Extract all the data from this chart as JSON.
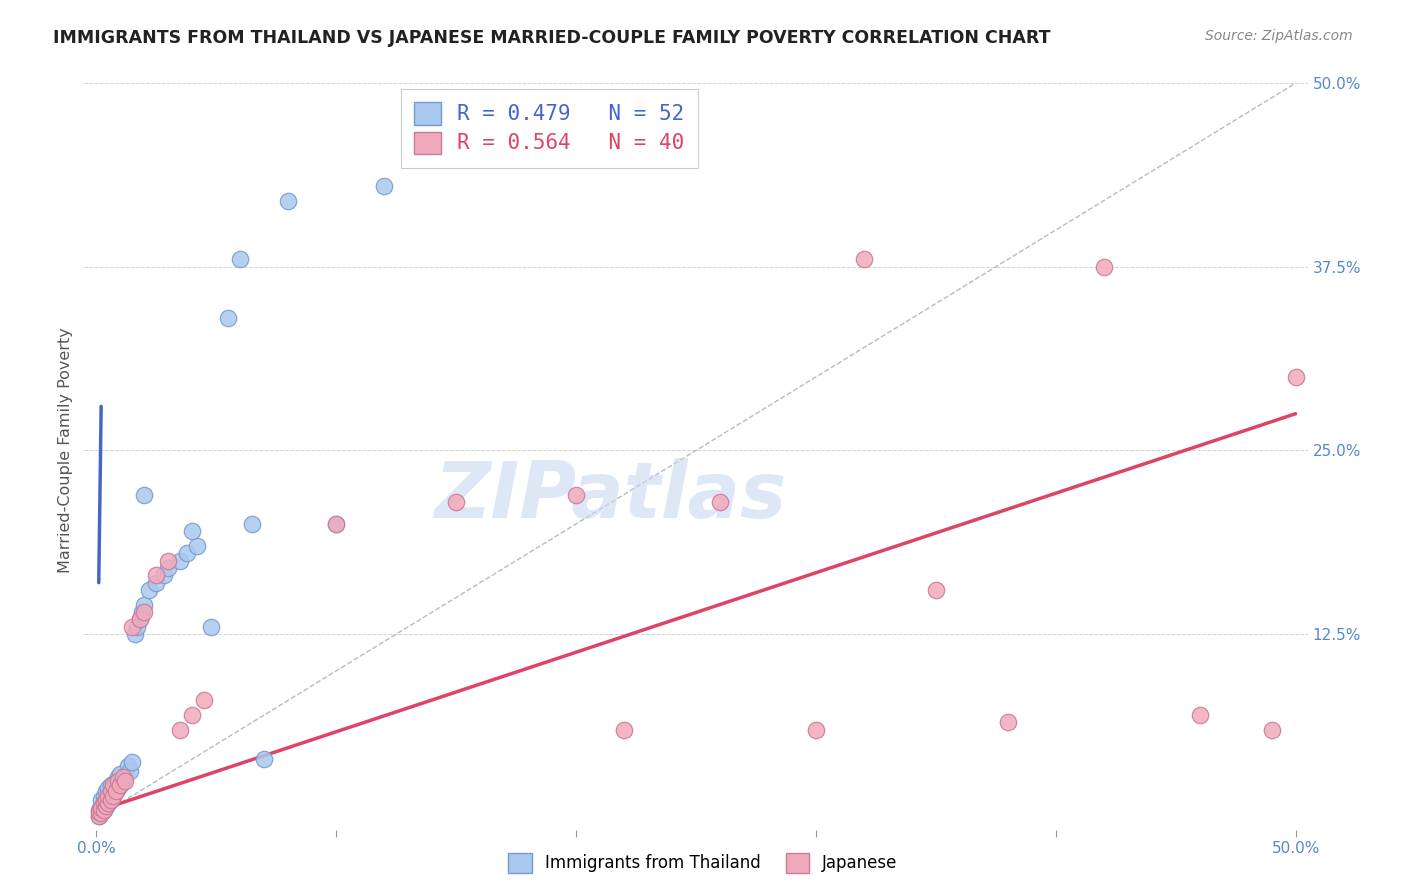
{
  "title": "IMMIGRANTS FROM THAILAND VS JAPANESE MARRIED-COUPLE FAMILY POVERTY CORRELATION CHART",
  "source": "Source: ZipAtlas.com",
  "ylabel": "Married-Couple Family Poverty",
  "xlim": [
    -0.005,
    0.505
  ],
  "ylim": [
    -0.008,
    0.508
  ],
  "xticks": [
    0.0,
    0.1,
    0.2,
    0.3,
    0.4,
    0.5
  ],
  "xticklabels_visible": [
    "0.0%",
    "",
    "",
    "",
    "",
    "50.0%"
  ],
  "yticks": [
    0.0,
    0.125,
    0.25,
    0.375,
    0.5
  ],
  "yticklabels_right": [
    "",
    "12.5%",
    "25.0%",
    "37.5%",
    "50.0%"
  ],
  "legend_line1": "R = 0.479   N = 52",
  "legend_line2": "R = 0.564   N = 40",
  "blue_fill": "#aac8f0",
  "blue_edge": "#7799cc",
  "pink_fill": "#f0aabb",
  "pink_edge": "#cc7799",
  "blue_line": "#4466cc",
  "pink_line": "#dd4466",
  "watermark_text": "ZIPatlas",
  "watermark_color": "#c8d8f0",
  "tick_color": "#5588cc",
  "grid_color": "#cccccc",
  "title_color": "#222222",
  "source_color": "#888888",
  "ylabel_color": "#555555",
  "blue_x": [
    0.001,
    0.001,
    0.002,
    0.002,
    0.002,
    0.003,
    0.003,
    0.003,
    0.004,
    0.004,
    0.004,
    0.005,
    0.005,
    0.005,
    0.006,
    0.006,
    0.006,
    0.007,
    0.007,
    0.008,
    0.008,
    0.009,
    0.009,
    0.01,
    0.01,
    0.011,
    0.012,
    0.013,
    0.014,
    0.015,
    0.016,
    0.017,
    0.018,
    0.019,
    0.02,
    0.022,
    0.025,
    0.028,
    0.03,
    0.035,
    0.038,
    0.042,
    0.048,
    0.055,
    0.06,
    0.065,
    0.07,
    0.08,
    0.02,
    0.04,
    0.1,
    0.12
  ],
  "blue_y": [
    0.001,
    0.005,
    0.003,
    0.008,
    0.012,
    0.005,
    0.01,
    0.015,
    0.008,
    0.012,
    0.018,
    0.01,
    0.015,
    0.02,
    0.012,
    0.018,
    0.022,
    0.015,
    0.02,
    0.018,
    0.025,
    0.02,
    0.028,
    0.022,
    0.03,
    0.025,
    0.028,
    0.035,
    0.032,
    0.038,
    0.125,
    0.13,
    0.135,
    0.14,
    0.145,
    0.155,
    0.16,
    0.165,
    0.17,
    0.175,
    0.18,
    0.185,
    0.13,
    0.34,
    0.38,
    0.2,
    0.04,
    0.42,
    0.22,
    0.195,
    0.2,
    0.43
  ],
  "pink_x": [
    0.001,
    0.001,
    0.002,
    0.002,
    0.003,
    0.003,
    0.004,
    0.004,
    0.005,
    0.005,
    0.006,
    0.006,
    0.007,
    0.007,
    0.008,
    0.009,
    0.01,
    0.011,
    0.012,
    0.015,
    0.018,
    0.02,
    0.025,
    0.03,
    0.035,
    0.04,
    0.045,
    0.1,
    0.15,
    0.2,
    0.22,
    0.26,
    0.3,
    0.32,
    0.35,
    0.38,
    0.42,
    0.46,
    0.49,
    0.5
  ],
  "pink_y": [
    0.001,
    0.004,
    0.003,
    0.007,
    0.005,
    0.01,
    0.008,
    0.012,
    0.01,
    0.015,
    0.012,
    0.018,
    0.015,
    0.022,
    0.018,
    0.025,
    0.022,
    0.028,
    0.025,
    0.13,
    0.135,
    0.14,
    0.165,
    0.175,
    0.06,
    0.07,
    0.08,
    0.2,
    0.215,
    0.22,
    0.06,
    0.215,
    0.06,
    0.38,
    0.155,
    0.065,
    0.375,
    0.07,
    0.06,
    0.3
  ],
  "blue_reg": [
    0.001,
    0.16,
    0.002,
    0.28
  ],
  "pink_reg": [
    0.001,
    0.005,
    0.5,
    0.275
  ]
}
